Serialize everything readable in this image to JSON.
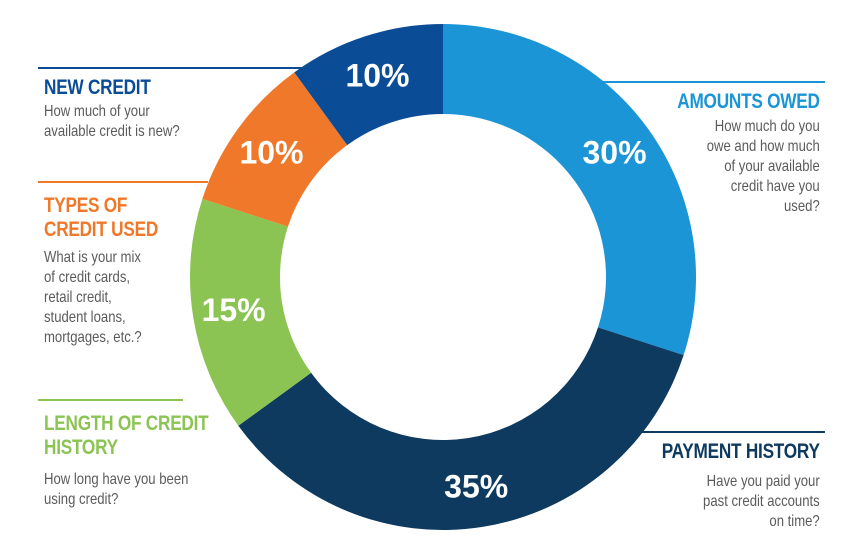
{
  "chart_data": {
    "type": "pie",
    "title": "",
    "categories": [
      "Amounts Owed",
      "Payment History",
      "Length of Credit History",
      "Types of Credit Used",
      "New Credit"
    ],
    "values": [
      30,
      35,
      15,
      10,
      10
    ],
    "value_labels": [
      "30%",
      "35%",
      "15%",
      "10%",
      "10%"
    ],
    "colors": [
      "#1b95d5",
      "#0d3a5e",
      "#8cc454",
      "#f0782a",
      "#0b4c96"
    ],
    "donut": true
  },
  "annotations": {
    "new_credit": {
      "title": [
        "NEW CREDIT"
      ],
      "desc": [
        "How much of your",
        "available credit is new?"
      ],
      "color": "#0b4c96"
    },
    "types_of_credit": {
      "title": [
        "TYPES OF",
        "CREDIT USED"
      ],
      "desc": [
        "What is your mix",
        "of credit cards,",
        "retail credit,",
        "student loans,",
        "mortgages, etc.?"
      ],
      "color": "#f0782a"
    },
    "length_of_history": {
      "title": [
        "LENGTH OF CREDIT",
        "HISTORY"
      ],
      "desc": [
        "How long have you been",
        "using credit?"
      ],
      "color": "#8cc454"
    },
    "amounts_owed": {
      "title": [
        "AMOUNTS OWED"
      ],
      "desc": [
        "How much do you",
        "owe and how much",
        "of your available",
        "credit have you",
        "used?"
      ],
      "color": "#1b95d5"
    },
    "payment_history": {
      "title": [
        "PAYMENT HISTORY"
      ],
      "desc": [
        "Have you paid your",
        "past credit accounts",
        "on time?"
      ],
      "color": "#0d3a5e"
    }
  }
}
